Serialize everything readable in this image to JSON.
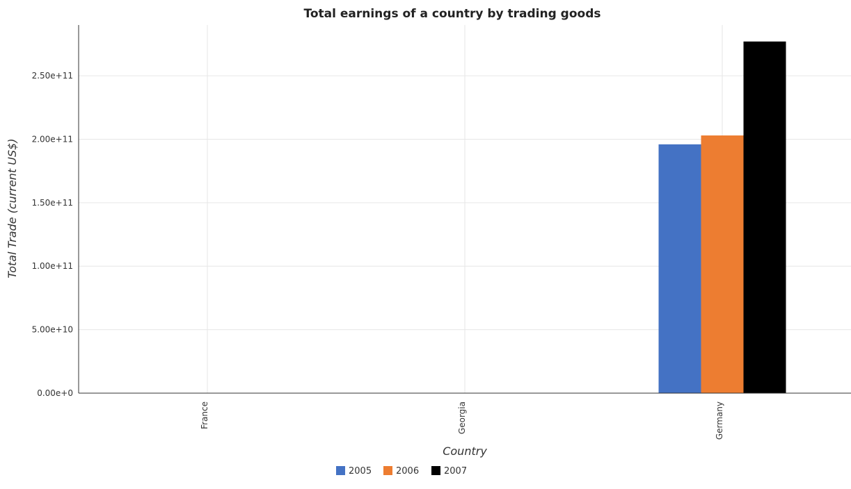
{
  "chart_data": {
    "type": "bar",
    "title": "Total earnings of a country by trading goods",
    "xlabel": "Country",
    "ylabel": "Total Trade (current US$)",
    "categories": [
      "France",
      "Georgia",
      "Germany"
    ],
    "series": [
      {
        "name": "2005",
        "color": "#4472c4",
        "values": [
          0,
          0,
          196000000000
        ]
      },
      {
        "name": "2006",
        "color": "#ed7d31",
        "values": [
          0,
          0,
          203000000000
        ]
      },
      {
        "name": "2007",
        "color": "#000000",
        "values": [
          0,
          0,
          277000000000
        ]
      }
    ],
    "ylim": [
      0,
      290000000000
    ],
    "yticks": [
      0,
      50000000000,
      100000000000,
      150000000000,
      200000000000,
      250000000000
    ],
    "ytick_labels": [
      "0.00e+0",
      "5.00e+10",
      "1.00e+11",
      "1.50e+11",
      "2.00e+11",
      "2.50e+11"
    ],
    "grid": true,
    "legend_position": "bottom-center"
  }
}
